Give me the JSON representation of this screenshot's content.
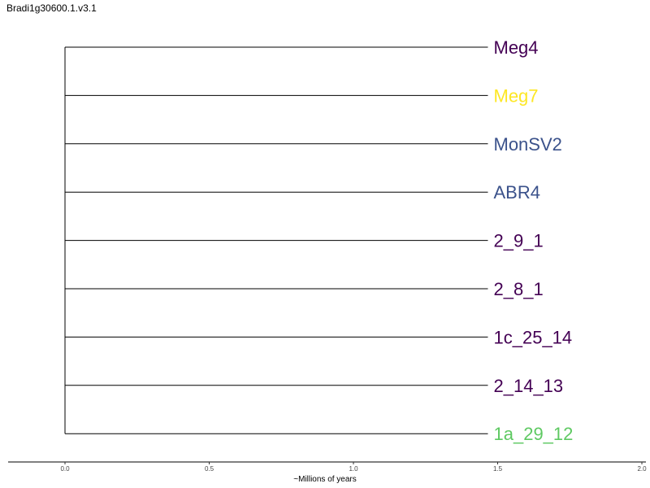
{
  "title": "Bradi1g30600.1.v3.1",
  "chart_data": {
    "type": "phylogenetic-tree",
    "xlabel": "~Millions of years",
    "xlim": [
      0.0,
      2.0
    ],
    "x_ticks": [
      "0.0",
      "0.5",
      "1.0",
      "1.5",
      "2.0"
    ],
    "x_tick_values": [
      0.0,
      0.5,
      1.0,
      1.5,
      2.0
    ],
    "root_x": 0.0,
    "tips": [
      {
        "name": "Meg4",
        "x": 1.5,
        "color": "#440154"
      },
      {
        "name": "Meg7",
        "x": 1.5,
        "color": "#fde725"
      },
      {
        "name": "MonSV2",
        "x": 1.5,
        "color": "#3b528b"
      },
      {
        "name": "ABR4",
        "x": 1.5,
        "color": "#3b528b"
      },
      {
        "name": "2_9_1",
        "x": 1.5,
        "color": "#440154"
      },
      {
        "name": "2_8_1",
        "x": 1.5,
        "color": "#440154"
      },
      {
        "name": "1c_25_14",
        "x": 1.5,
        "color": "#440154"
      },
      {
        "name": "2_14_13",
        "x": 1.5,
        "color": "#440154"
      },
      {
        "name": "1a_29_12",
        "x": 1.5,
        "color": "#5ec962"
      }
    ]
  }
}
